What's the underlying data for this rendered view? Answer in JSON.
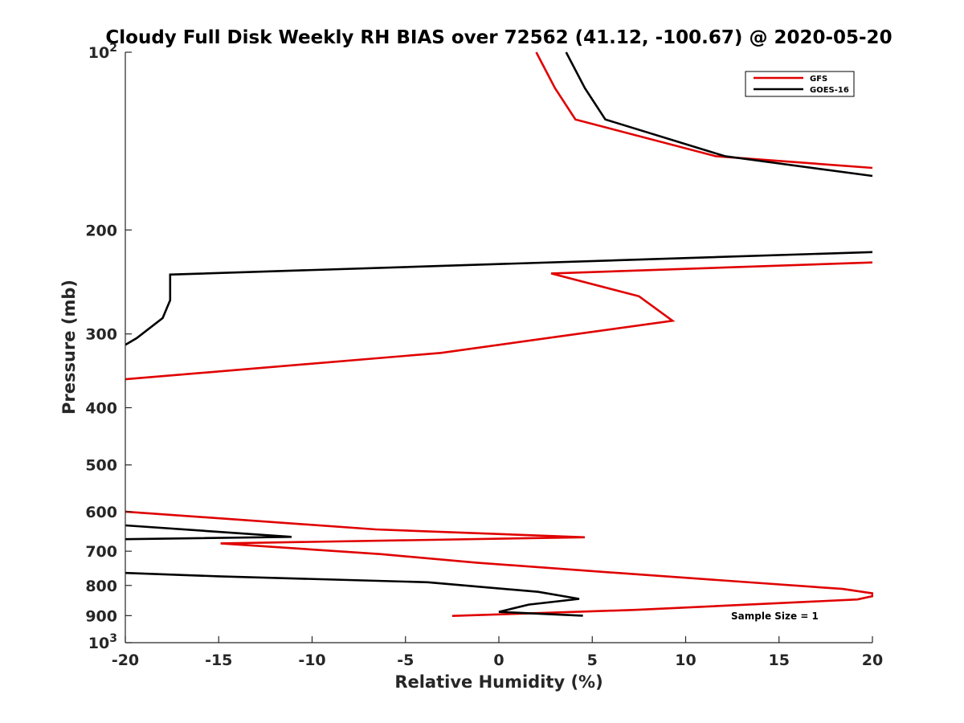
{
  "chart_data": {
    "type": "line",
    "title": "Cloudy Full Disk Weekly RH BIAS over 72562 (41.12, -100.67) @ 2020-05-20",
    "xlabel": "Relative Humidity (%)",
    "ylabel": "Pressure (mb)",
    "xlim": [
      -20,
      20
    ],
    "ylim": [
      100,
      1000
    ],
    "y_scale": "log",
    "y_reversed": true,
    "x_ticks": [
      -20,
      -15,
      -10,
      -5,
      0,
      5,
      10,
      15,
      20
    ],
    "x_tick_labels": [
      "-20",
      "-15",
      "-10",
      "-5",
      "0",
      "5",
      "10",
      "15",
      "20"
    ],
    "y_ticks": [
      100,
      200,
      300,
      400,
      500,
      600,
      700,
      800,
      900,
      1000
    ],
    "y_tick_labels": [
      "10²",
      "200",
      "300",
      "400",
      "500",
      "600",
      "700",
      "800",
      "900",
      "10³"
    ],
    "grid": false,
    "legend_position": "top-right",
    "annotation": "Sample Size = 1",
    "series": [
      {
        "name": "GFS",
        "color": "#e00000",
        "points": [
          {
            "x": 2.0,
            "p": 100
          },
          {
            "x": 3.0,
            "p": 115
          },
          {
            "x": 4.1,
            "p": 130
          },
          {
            "x": 11.6,
            "p": 150
          },
          {
            "x": 20.0,
            "p": 157
          },
          {
            "x": null,
            "p": null
          },
          {
            "x": 20.0,
            "p": 227
          },
          {
            "x": 2.8,
            "p": 237
          },
          {
            "x": 7.5,
            "p": 259
          },
          {
            "x": 9.3,
            "p": 285
          },
          {
            "x": 4.2,
            "p": 300
          },
          {
            "x": -3.1,
            "p": 323
          },
          {
            "x": -20.0,
            "p": 358
          },
          {
            "x": null,
            "p": null
          },
          {
            "x": -20.0,
            "p": 600
          },
          {
            "x": -6.6,
            "p": 643
          },
          {
            "x": 4.6,
            "p": 663
          },
          {
            "x": -14.9,
            "p": 679
          },
          {
            "x": -6.3,
            "p": 708
          },
          {
            "x": -1.2,
            "p": 732
          },
          {
            "x": 6.9,
            "p": 764
          },
          {
            "x": 18.4,
            "p": 811
          },
          {
            "x": 20.0,
            "p": 825
          },
          {
            "x": 20.0,
            "p": 834
          },
          {
            "x": 19.2,
            "p": 845
          },
          {
            "x": 7.3,
            "p": 880
          },
          {
            "x": -2.5,
            "p": 901
          }
        ]
      },
      {
        "name": "GOES-16",
        "color": "#000000",
        "points": [
          {
            "x": 3.6,
            "p": 100
          },
          {
            "x": 4.6,
            "p": 115
          },
          {
            "x": 5.7,
            "p": 130
          },
          {
            "x": 12.1,
            "p": 150
          },
          {
            "x": 20.0,
            "p": 162
          },
          {
            "x": null,
            "p": null
          },
          {
            "x": 20.0,
            "p": 218
          },
          {
            "x": -17.6,
            "p": 238
          },
          {
            "x": -17.6,
            "p": 263
          },
          {
            "x": -18.0,
            "p": 282
          },
          {
            "x": -19.4,
            "p": 305
          },
          {
            "x": -20.0,
            "p": 313
          },
          {
            "x": null,
            "p": null
          },
          {
            "x": -20.0,
            "p": 633
          },
          {
            "x": -11.1,
            "p": 662
          },
          {
            "x": -20.0,
            "p": 668
          },
          {
            "x": null,
            "p": null
          },
          {
            "x": -20.0,
            "p": 762
          },
          {
            "x": -15.0,
            "p": 772
          },
          {
            "x": -3.8,
            "p": 790
          },
          {
            "x": 2.1,
            "p": 820
          },
          {
            "x": 4.3,
            "p": 843
          },
          {
            "x": 1.6,
            "p": 862
          },
          {
            "x": 0.0,
            "p": 887
          },
          {
            "x": 4.5,
            "p": 900
          }
        ]
      }
    ]
  }
}
